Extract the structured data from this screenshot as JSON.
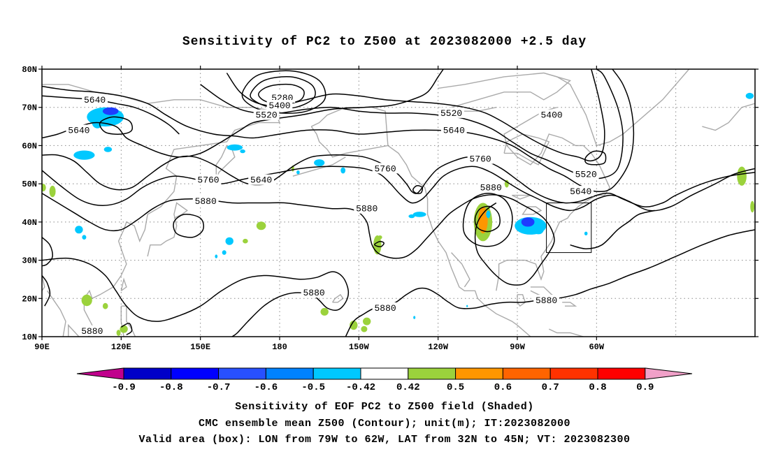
{
  "title": "Sensitivity of PC2 to Z500 at 2023082000 +2.5 day",
  "captions": {
    "line1": "Sensitivity of EOF PC2 to Z500 field (Shaded)",
    "line2": "CMC ensemble mean Z500 (Contour); unit(m); IT:2023082000",
    "line3": "Valid area (box): LON from 79W to 62W, LAT from 32N to 45N; VT: 2023082300"
  },
  "map": {
    "lon_ticks": [
      "90E",
      "120E",
      "150E",
      "180",
      "150W",
      "120W",
      "90W",
      "60W"
    ],
    "lat_ticks": [
      "80N",
      "70N",
      "60N",
      "50N",
      "40N",
      "30N",
      "20N",
      "10N"
    ],
    "grid": true,
    "coastline_color": "#aaaaaa",
    "contour_color": "#000000",
    "valid_box": {
      "lon_from": "79W",
      "lon_to": "62W",
      "lat_from": "32N",
      "lat_to": "45N"
    },
    "contour_labels": [
      {
        "text": "5640",
        "lon": 110,
        "lat": 72
      },
      {
        "text": "5640",
        "lon": 104,
        "lat": 64
      },
      {
        "text": "5280",
        "lon": 181,
        "lat": 72.5
      },
      {
        "text": "5400",
        "lon": 180,
        "lat": 70.5
      },
      {
        "text": "5520",
        "lon": 175,
        "lat": 68
      },
      {
        "text": "5520",
        "lon": 245,
        "lat": 68.5
      },
      {
        "text": "5640",
        "lon": 246,
        "lat": 64
      },
      {
        "text": "5400",
        "lon": 283,
        "lat": 68
      },
      {
        "text": "5760",
        "lon": 153,
        "lat": 51
      },
      {
        "text": "5640",
        "lon": 173,
        "lat": 51
      },
      {
        "text": "5760",
        "lon": 220,
        "lat": 54
      },
      {
        "text": "5760",
        "lon": 256,
        "lat": 56.5
      },
      {
        "text": "5880",
        "lon": 260,
        "lat": 49
      },
      {
        "text": "5520",
        "lon": 296,
        "lat": 52.5
      },
      {
        "text": "5640",
        "lon": 294,
        "lat": 48
      },
      {
        "text": "5880",
        "lon": 152,
        "lat": 45.5
      },
      {
        "text": "5880",
        "lon": 213,
        "lat": 43.5
      },
      {
        "text": "5880",
        "lon": 193,
        "lat": 21.5
      },
      {
        "text": "5880",
        "lon": 220,
        "lat": 17.5
      },
      {
        "text": "5880",
        "lon": 281,
        "lat": 19.5
      },
      {
        "text": "5880",
        "lon": 109,
        "lat": 11.5
      }
    ],
    "shading": {
      "negative_color": "#00c8ff",
      "negative_strong_color": "#1e3cff",
      "positive_color": "#9bd23c",
      "positive_strong_color": "#ff9600"
    }
  },
  "colorbar": {
    "colors": [
      "#c0008c",
      "#0000c8",
      "#0000ff",
      "#2850ff",
      "#0082ff",
      "#00c8ff",
      "#ffffff",
      "#9bd23c",
      "#ff9600",
      "#ff6400",
      "#ff3200",
      "#ff0000",
      "#f0a0c8"
    ],
    "labels": [
      "-0.9",
      "-0.8",
      "-0.7",
      "-0.6",
      "-0.5",
      "-0.42",
      "0.42",
      "0.5",
      "0.6",
      "0.7",
      "0.8",
      "0.9"
    ]
  }
}
